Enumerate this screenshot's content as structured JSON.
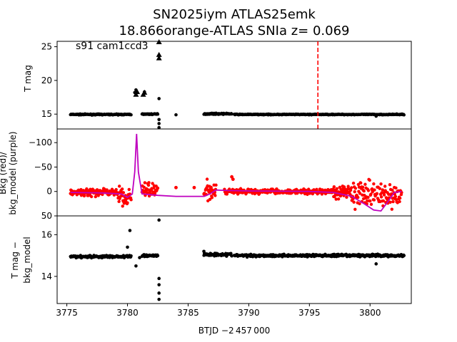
{
  "title_line1": "SN2025iym  ATLAS25emk",
  "title_line2": "18.866orange-ATLAS SNIa z= 0.069",
  "chart_data": [
    {
      "type": "scatter",
      "panel": "top",
      "ylabel": "T mag",
      "annotation": "s91 cam1ccd3",
      "xlim": [
        3774.2,
        3803.4
      ],
      "ylim": [
        25.8,
        12.8
      ],
      "yticks": [
        "15",
        "20",
        "25"
      ],
      "yticks_values": [
        15,
        20,
        25
      ],
      "marker_color": "#000000",
      "vline": {
        "x": 3795.7,
        "color": "#ff0000",
        "style": "dashed"
      },
      "series": [
        {
          "name": "",
          "segments": [
            {
              "x0": 3775.3,
              "x1": 3780.3,
              "y": 14.95,
              "jitter": 0.12
            },
            {
              "x0": 3781.2,
              "x1": 3782.5,
              "y": 15.0,
              "jitter": 0.12
            },
            {
              "x0": 3786.3,
              "x1": 3788.6,
              "y": 15.05,
              "jitter": 0.15
            },
            {
              "x0": 3788.8,
              "x1": 3802.8,
              "y": 14.95,
              "jitter": 0.1
            }
          ]
        }
      ],
      "extra_points": [
        {
          "x": 3780.6,
          "y": 18.2
        },
        {
          "x": 3780.7,
          "y": 18.6
        },
        {
          "x": 3781.4,
          "y": 18.3
        },
        {
          "x": 3782.6,
          "y": 13.0
        },
        {
          "x": 3782.6,
          "y": 13.6
        },
        {
          "x": 3782.6,
          "y": 14.2
        },
        {
          "x": 3782.6,
          "y": 17.3
        },
        {
          "x": 3784.0,
          "y": 14.9
        },
        {
          "x": 3800.5,
          "y": 14.7
        }
      ],
      "triangles": [
        {
          "x": 3780.7,
          "y": 17.9
        },
        {
          "x": 3780.8,
          "y": 18.3
        },
        {
          "x": 3781.3,
          "y": 17.9
        },
        {
          "x": 3781.4,
          "y": 18.2
        },
        {
          "x": 3782.6,
          "y": 23.3
        },
        {
          "x": 3782.6,
          "y": 23.8
        },
        {
          "x": 3782.6,
          "y": 25.7
        }
      ]
    },
    {
      "type": "scatter",
      "panel": "middle",
      "ylabel_line1": "Bkg (red)/",
      "ylabel_line2": "bkg_model (purple)",
      "xlim": [
        3774.2,
        3803.4
      ],
      "ylim": [
        -128,
        50
      ],
      "yticks": [
        "50",
        "0",
        "−50",
        "−100"
      ],
      "yticks_values": [
        50,
        0,
        -50,
        -100
      ],
      "bkg_color": "#ff0000",
      "model_color": "#bf00bf",
      "model_line": {
        "x": [
          3775.3,
          3778.0,
          3779.5,
          3780.0,
          3780.4,
          3780.6,
          3780.75,
          3780.9,
          3781.2,
          3782.5,
          3784.0,
          3786.3,
          3786.8,
          3787.3,
          3788.2,
          3790.0,
          3795.0,
          3797.0,
          3798.5,
          3799.5,
          3800.3,
          3800.9,
          3801.5,
          3802.0,
          3802.6
        ],
        "y": [
          2,
          3,
          5,
          12,
          5,
          -40,
          -118,
          -40,
          5,
          8,
          10,
          10,
          5,
          -3,
          -2,
          -1,
          0,
          2,
          10,
          25,
          38,
          40,
          20,
          2,
          0
        ]
      },
      "bkg_segments": [
        {
          "x0": 3775.3,
          "x1": 3779.2,
          "y": 2,
          "jitter": 10
        },
        {
          "x0": 3779.2,
          "x1": 3780.3,
          "y": 12,
          "jitter": 22
        },
        {
          "x0": 3781.2,
          "x1": 3782.5,
          "y": -5,
          "jitter": 20
        },
        {
          "x0": 3786.3,
          "x1": 3787.3,
          "y": 0,
          "jitter": 28
        },
        {
          "x0": 3788.0,
          "x1": 3797.0,
          "y": 0,
          "jitter": 7
        },
        {
          "x0": 3797.0,
          "x1": 3798.5,
          "y": 2,
          "jitter": 18
        },
        {
          "x0": 3798.5,
          "x1": 3802.6,
          "y": 5,
          "jitter": 32
        }
      ],
      "bkg_extra": [
        {
          "x": 3784.0,
          "y": -8
        },
        {
          "x": 3785.5,
          "y": -8
        },
        {
          "x": 3788.6,
          "y": -30
        },
        {
          "x": 3788.7,
          "y": -25
        }
      ]
    },
    {
      "type": "scatter",
      "panel": "bottom",
      "ylabel_line1": "T mag −",
      "ylabel_line2": "bkg_model",
      "xlabel": "BTJD −2 457 000",
      "xlim": [
        3774.2,
        3803.4
      ],
      "ylim": [
        16.9,
        12.7
      ],
      "xticks": [
        "3775",
        "3780",
        "3785",
        "3790",
        "3795",
        "3800"
      ],
      "xticks_values": [
        3775,
        3780,
        3785,
        3790,
        3795,
        3800
      ],
      "yticks": [
        "14",
        "16"
      ],
      "yticks_values": [
        14,
        16
      ],
      "marker_color": "#000000",
      "segments": [
        {
          "x0": 3775.3,
          "x1": 3780.3,
          "y": 14.95,
          "jitter": 0.1
        },
        {
          "x0": 3781.2,
          "x1": 3782.5,
          "y": 15.0,
          "jitter": 0.1
        },
        {
          "x0": 3786.3,
          "x1": 3788.6,
          "y": 15.05,
          "jitter": 0.12
        },
        {
          "x0": 3788.8,
          "x1": 3802.8,
          "y": 15.0,
          "jitter": 0.1
        }
      ],
      "extra_points": [
        {
          "x": 3780.0,
          "y": 15.4
        },
        {
          "x": 3780.2,
          "y": 16.2
        },
        {
          "x": 3780.7,
          "y": 14.5
        },
        {
          "x": 3781.0,
          "y": 14.9
        },
        {
          "x": 3782.6,
          "y": 12.9
        },
        {
          "x": 3782.6,
          "y": 13.2
        },
        {
          "x": 3782.6,
          "y": 13.6
        },
        {
          "x": 3782.6,
          "y": 13.9
        },
        {
          "x": 3782.6,
          "y": 16.7
        },
        {
          "x": 3786.3,
          "y": 15.2
        },
        {
          "x": 3800.5,
          "y": 14.6
        }
      ]
    }
  ]
}
